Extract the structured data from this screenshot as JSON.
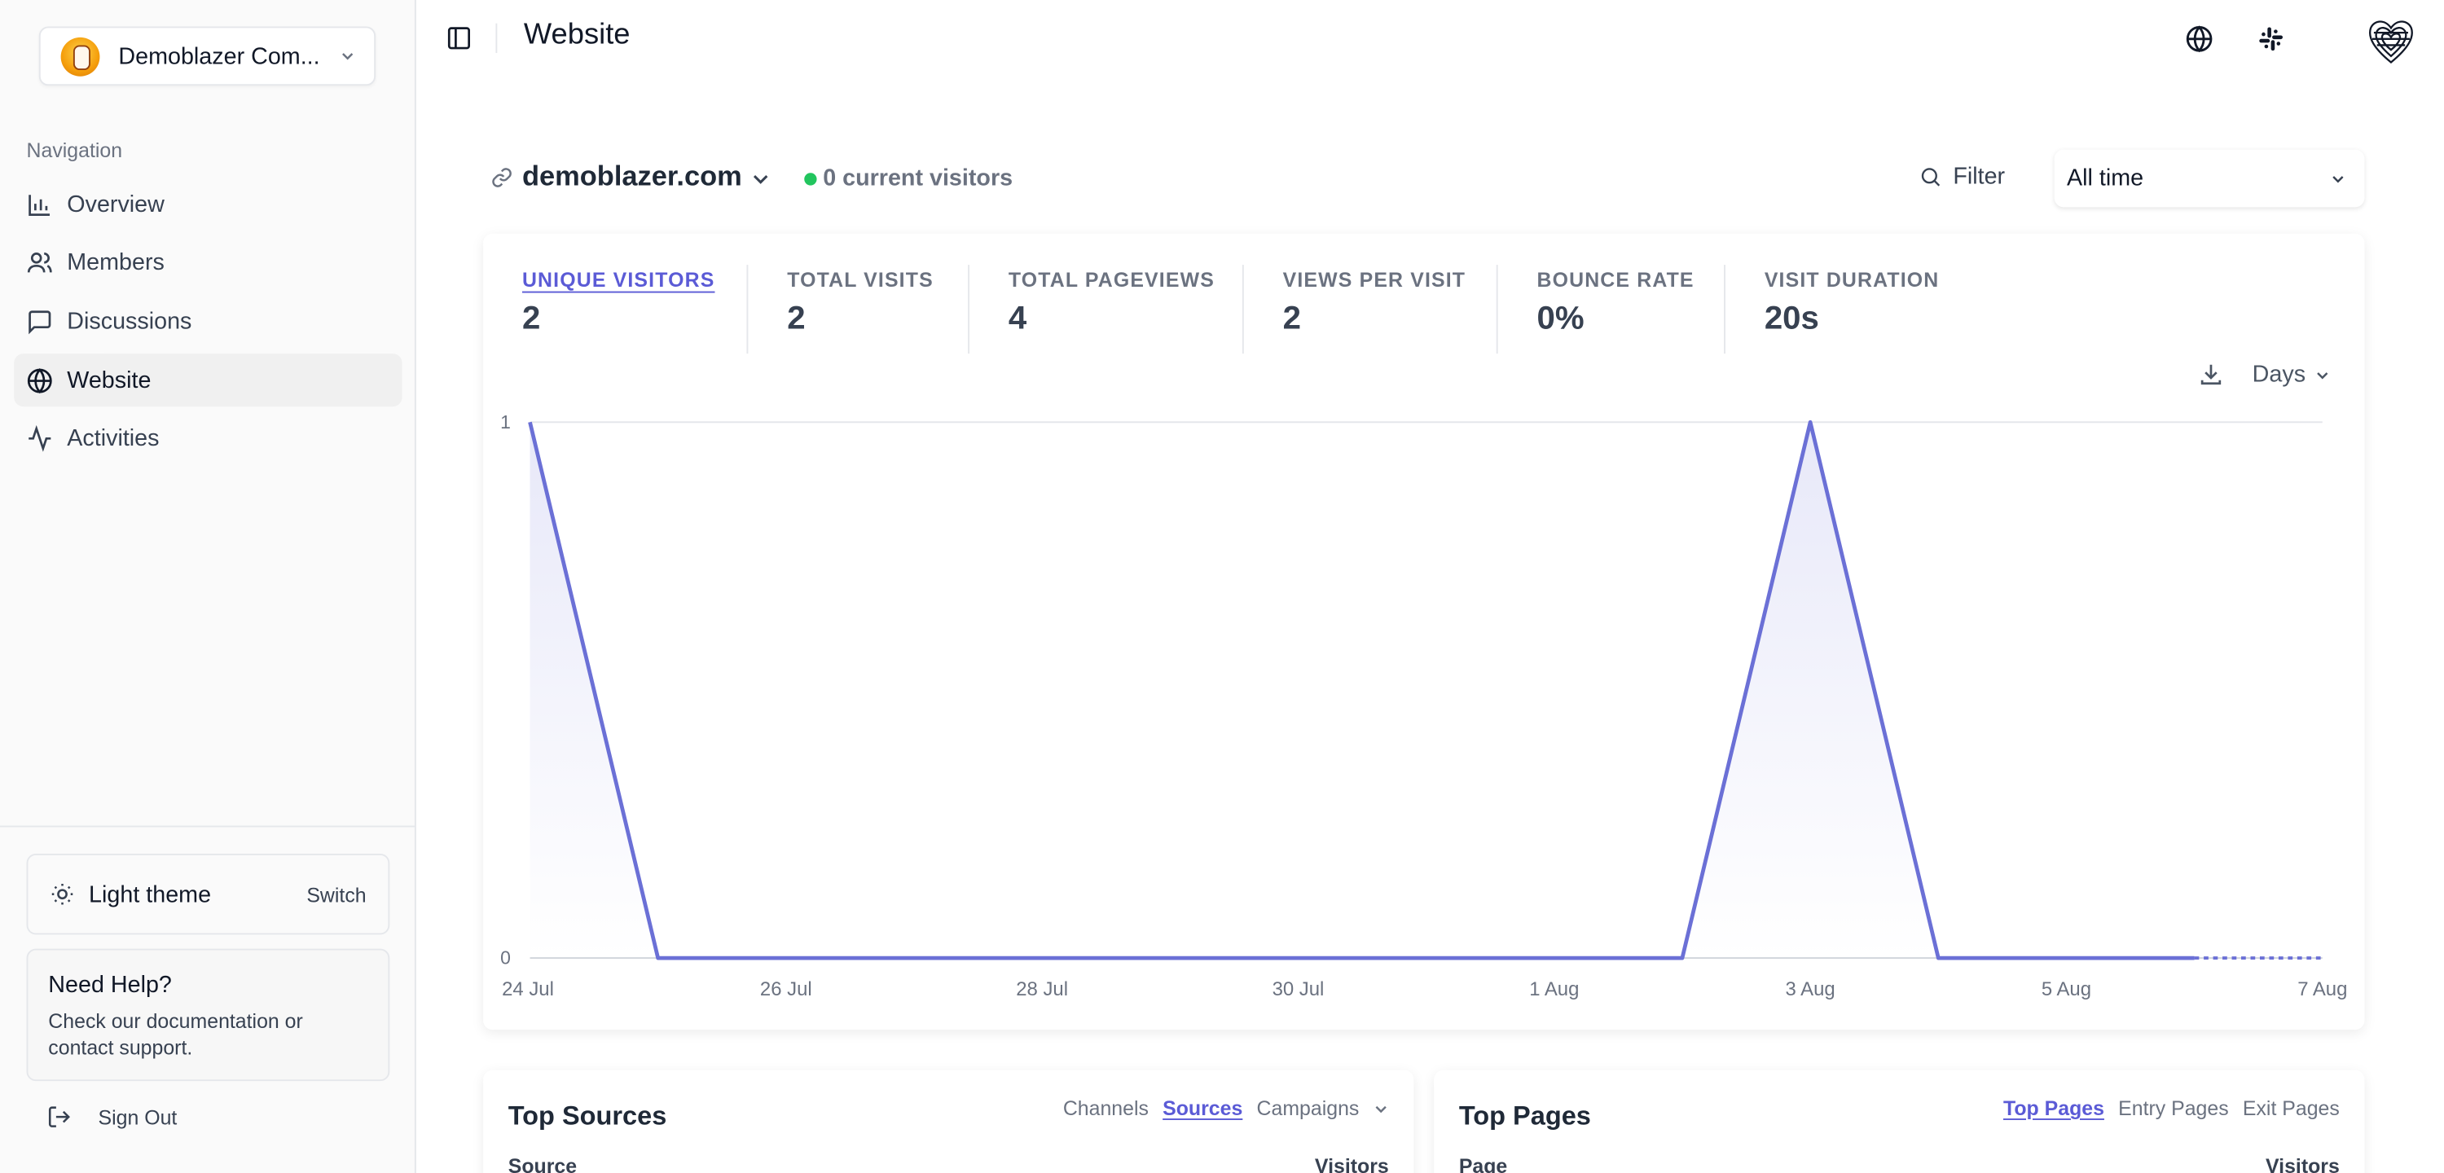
{
  "sidebar": {
    "workspace_name": "Demoblazer Com...",
    "nav_title": "Navigation",
    "items": [
      {
        "label": "Overview"
      },
      {
        "label": "Members"
      },
      {
        "label": "Discussions"
      },
      {
        "label": "Website"
      },
      {
        "label": "Activities"
      }
    ],
    "active_item": "Website",
    "theme_label": "Light theme",
    "theme_switch": "Switch",
    "help_title": "Need Help?",
    "help_text": "Check our documentation or contact support.",
    "signout_label": "Sign Out"
  },
  "header": {
    "title": "Website"
  },
  "site": {
    "domain": "demoblazer.com",
    "live_visitors": "0 current visitors",
    "filter_label": "Filter",
    "period": "All time"
  },
  "stats": [
    {
      "label": "UNIQUE VISITORS",
      "value": "2"
    },
    {
      "label": "TOTAL VISITS",
      "value": "2"
    },
    {
      "label": "TOTAL PAGEVIEWS",
      "value": "4"
    },
    {
      "label": "VIEWS PER VISIT",
      "value": "2"
    },
    {
      "label": "BOUNCE RATE",
      "value": "0%"
    },
    {
      "label": "VISIT DURATION",
      "value": "20s"
    }
  ],
  "interval_label": "Days",
  "chart_data": {
    "type": "area",
    "x": [
      "2023-07-24",
      "2023-07-25",
      "2023-07-26",
      "2023-07-27",
      "2023-07-28",
      "2023-07-29",
      "2023-07-30",
      "2023-07-31",
      "2023-08-01",
      "2023-08-02",
      "2023-08-03",
      "2023-08-04",
      "2023-08-05",
      "2023-08-06",
      "2023-08-07"
    ],
    "series": [
      {
        "values": [
          1,
          0,
          0,
          0,
          0,
          0,
          0,
          0,
          0,
          0,
          1,
          0,
          0,
          0,
          0
        ]
      }
    ],
    "x_tick_labels": [
      "24 Jul",
      "26 Jul",
      "28 Jul",
      "30 Jul",
      "1 Aug",
      "3 Aug",
      "5 Aug",
      "7 Aug"
    ],
    "y_tick_labels": [
      "0",
      "1"
    ],
    "ylim": [
      0,
      1
    ],
    "grid": true,
    "color": "#6b70d6"
  },
  "top_sources": {
    "title": "Top Sources",
    "tabs": [
      "Channels",
      "Sources",
      "Campaigns"
    ],
    "active_tab": "Sources",
    "col_left": "Source",
    "col_right": "Visitors"
  },
  "top_pages": {
    "title": "Top Pages",
    "tabs": [
      "Top Pages",
      "Entry Pages",
      "Exit Pages"
    ],
    "active_tab": "Top Pages",
    "col_left": "Page",
    "col_right": "Visitors"
  },
  "colors": {
    "accent": "#5b5bd6",
    "live": "#22c55e",
    "line": "#6b70d6"
  }
}
